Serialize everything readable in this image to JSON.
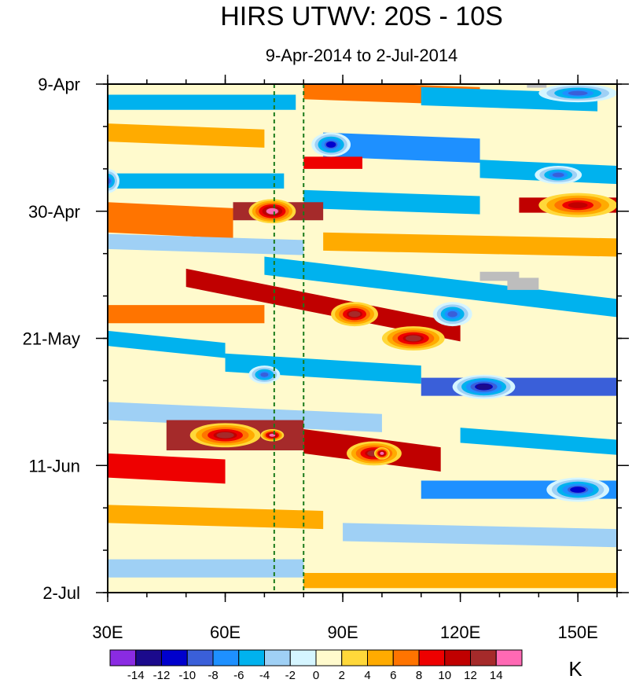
{
  "chart_data": {
    "type": "heatmap",
    "title": "HIRS UTWV: 20S - 10S",
    "subtitle": "9-Apr-2014 to 2-Jul-2014",
    "unit_label": "K",
    "x_axis": {
      "range": [
        30,
        160
      ],
      "ticks": [
        {
          "value": 30,
          "label": "30E"
        },
        {
          "value": 60,
          "label": "60E"
        },
        {
          "value": 90,
          "label": "90E"
        },
        {
          "value": 120,
          "label": "120E"
        },
        {
          "value": 150,
          "label": "150E"
        }
      ],
      "minor_step": 10
    },
    "y_axis": {
      "range_days": [
        0,
        84
      ],
      "ticks": [
        {
          "day": 0,
          "label": "9-Apr"
        },
        {
          "day": 21,
          "label": "30-Apr"
        },
        {
          "day": 42,
          "label": "21-May"
        },
        {
          "day": 63,
          "label": "11-Jun"
        },
        {
          "day": 84,
          "label": "2-Jul"
        }
      ],
      "minor_step_days": 7
    },
    "reference_lines_lon": [
      72.5,
      80
    ],
    "colorbar": {
      "levels": [
        -14,
        -12,
        -10,
        -8,
        -6,
        -4,
        -2,
        0,
        2,
        4,
        6,
        8,
        10,
        12,
        14
      ],
      "labels": [
        "-14",
        "-12",
        "-10",
        "-8",
        "-6",
        "-4",
        "-2",
        "0",
        "2",
        "4",
        "6",
        "8",
        "10",
        "12",
        "14"
      ],
      "colors": [
        "#8a2be2",
        "#1b0a8c",
        "#0000cd",
        "#3a5fd9",
        "#1e90ff",
        "#00b2ee",
        "#9fd0f5",
        "#d5f5ff",
        "#fffacd",
        "#ffd83a",
        "#ffab00",
        "#ff7400",
        "#ee0000",
        "#c00000",
        "#a52a2a",
        "#ff69b4"
      ]
    },
    "bands": [
      {
        "lon_start": 30,
        "lon_end": 160,
        "day_start": 0,
        "day_end": 84,
        "slope": 0,
        "thickness": 0,
        "value": 0
      },
      {
        "lon_start": 80,
        "lon_end": 125,
        "day_start": 1,
        "day_end": 2,
        "slope": 0,
        "thickness": 3,
        "value": 6
      },
      {
        "lon_start": 110,
        "lon_end": 155,
        "day_start": 2,
        "day_end": 3,
        "slope": 0,
        "thickness": 3,
        "value": -6
      },
      {
        "lon_start": 30,
        "lon_end": 78,
        "day_start": 3,
        "day_end": 3,
        "slope": 0,
        "thickness": 2.5,
        "value": -6
      },
      {
        "lon_start": 30,
        "lon_end": 70,
        "day_start": 8,
        "day_end": 9,
        "slope": 0,
        "thickness": 3,
        "value": 4
      },
      {
        "lon_start": 85,
        "lon_end": 125,
        "day_start": 10,
        "day_end": 11,
        "slope": 0,
        "thickness": 4,
        "value": -8
      },
      {
        "lon_start": 80,
        "lon_end": 95,
        "day_start": 13,
        "day_end": 13,
        "slope": 0,
        "thickness": 2,
        "value": 8
      },
      {
        "lon_start": 30,
        "lon_end": 75,
        "day_start": 16,
        "day_end": 16,
        "slope": 0,
        "thickness": 2.5,
        "value": -6
      },
      {
        "lon_start": 125,
        "lon_end": 160,
        "day_start": 14,
        "day_end": 15,
        "slope": 0,
        "thickness": 3,
        "value": -6
      },
      {
        "lon_start": 80,
        "lon_end": 125,
        "day_start": 19,
        "day_end": 20,
        "slope": 0,
        "thickness": 3,
        "value": -6
      },
      {
        "lon_start": 30,
        "lon_end": 62,
        "day_start": 22,
        "day_end": 23,
        "slope": 0,
        "thickness": 5,
        "value": 6
      },
      {
        "lon_start": 62,
        "lon_end": 85,
        "day_start": 21,
        "day_end": 21,
        "slope": 0,
        "thickness": 3,
        "value": 12
      },
      {
        "lon_start": 135,
        "lon_end": 160,
        "day_start": 20,
        "day_end": 20,
        "slope": 0,
        "thickness": 2.5,
        "value": 10
      },
      {
        "lon_start": 30,
        "lon_end": 80,
        "day_start": 26,
        "day_end": 27,
        "slope": 0,
        "thickness": 2.5,
        "value": -4
      },
      {
        "lon_start": 85,
        "lon_end": 160,
        "day_start": 26,
        "day_end": 27,
        "slope": 0,
        "thickness": 3,
        "value": 4
      },
      {
        "lon_start": 50,
        "lon_end": 120,
        "day_start": 32,
        "day_end": 41,
        "slope": 0,
        "thickness": 3,
        "value": 10
      },
      {
        "lon_start": 30,
        "lon_end": 70,
        "day_start": 38,
        "day_end": 38,
        "slope": 0,
        "thickness": 3,
        "value": 6
      },
      {
        "lon_start": 70,
        "lon_end": 160,
        "day_start": 30,
        "day_end": 37,
        "slope": 0,
        "thickness": 3,
        "value": -6
      },
      {
        "lon_start": 30,
        "lon_end": 60,
        "day_start": 42,
        "day_end": 44,
        "slope": 0,
        "thickness": 2.5,
        "value": -6
      },
      {
        "lon_start": 60,
        "lon_end": 110,
        "day_start": 46,
        "day_end": 48,
        "slope": 0,
        "thickness": 3,
        "value": -6
      },
      {
        "lon_start": 110,
        "lon_end": 160,
        "day_start": 50,
        "day_end": 50,
        "slope": 0,
        "thickness": 3,
        "value": -10
      },
      {
        "lon_start": 30,
        "lon_end": 100,
        "day_start": 54,
        "day_end": 56,
        "slope": 0,
        "thickness": 3,
        "value": -4
      },
      {
        "lon_start": 45,
        "lon_end": 80,
        "day_start": 58,
        "day_end": 58,
        "slope": 0,
        "thickness": 5,
        "value": 12
      },
      {
        "lon_start": 80,
        "lon_end": 115,
        "day_start": 59,
        "day_end": 62,
        "slope": 0,
        "thickness": 4,
        "value": 10
      },
      {
        "lon_start": 30,
        "lon_end": 60,
        "day_start": 63,
        "day_end": 64,
        "slope": 0,
        "thickness": 4,
        "value": 8
      },
      {
        "lon_start": 120,
        "lon_end": 160,
        "day_start": 58,
        "day_end": 60,
        "slope": 0,
        "thickness": 2.5,
        "value": -6
      },
      {
        "lon_start": 110,
        "lon_end": 160,
        "day_start": 67,
        "day_end": 67,
        "slope": 0,
        "thickness": 3,
        "value": -8
      },
      {
        "lon_start": 30,
        "lon_end": 85,
        "day_start": 71,
        "day_end": 72,
        "slope": 0,
        "thickness": 3,
        "value": 4
      },
      {
        "lon_start": 90,
        "lon_end": 160,
        "day_start": 74,
        "day_end": 75,
        "slope": 0,
        "thickness": 3,
        "value": -4
      },
      {
        "lon_start": 30,
        "lon_end": 80,
        "day_start": 80,
        "day_end": 80,
        "slope": 0,
        "thickness": 3,
        "value": -4
      },
      {
        "lon_start": 80,
        "lon_end": 160,
        "day_start": 82,
        "day_end": 82,
        "slope": 0,
        "thickness": 2.5,
        "value": 4
      }
    ],
    "blobs": [
      {
        "lon": 72,
        "day": 21,
        "r_lon": 6,
        "r_day": 2,
        "value": 15
      },
      {
        "lon": 60,
        "day": 58,
        "r_lon": 9,
        "r_day": 2,
        "value": 13
      },
      {
        "lon": 72,
        "day": 58,
        "r_lon": 3,
        "r_day": 1,
        "value": 15
      },
      {
        "lon": 98,
        "day": 61,
        "r_lon": 7,
        "r_day": 2,
        "value": 13
      },
      {
        "lon": 100,
        "day": 61,
        "r_lon": 2,
        "r_day": 1,
        "value": 15
      },
      {
        "lon": 93,
        "day": 38,
        "r_lon": 6,
        "r_day": 2,
        "value": 12
      },
      {
        "lon": 108,
        "day": 42,
        "r_lon": 8,
        "r_day": 2,
        "value": 12
      },
      {
        "lon": 87,
        "day": 10,
        "r_lon": 5,
        "r_day": 2,
        "value": -12
      },
      {
        "lon": 150,
        "day": 1.5,
        "r_lon": 10,
        "r_day": 1.5,
        "value": -10
      },
      {
        "lon": 145,
        "day": 15,
        "r_lon": 6,
        "r_day": 1.5,
        "value": -10
      },
      {
        "lon": 126,
        "day": 50,
        "r_lon": 8,
        "r_day": 2,
        "value": -14
      },
      {
        "lon": 150,
        "day": 67,
        "r_lon": 8,
        "r_day": 2,
        "value": -12
      },
      {
        "lon": 70,
        "day": 48,
        "r_lon": 4,
        "r_day": 1.5,
        "value": -10
      },
      {
        "lon": 118,
        "day": 38,
        "r_lon": 5,
        "r_day": 2,
        "value": -10
      },
      {
        "lon": 150,
        "day": 20,
        "r_lon": 10,
        "r_day": 2,
        "value": 10
      },
      {
        "lon": 30,
        "day": 16,
        "r_lon": 3,
        "r_day": 2,
        "value": -10
      }
    ],
    "missing_data": [
      {
        "lon_start": 125,
        "lon_end": 135,
        "day_start": 31,
        "day_end": 32.5
      },
      {
        "lon_start": 132,
        "lon_end": 140,
        "day_start": 32,
        "day_end": 34
      },
      {
        "lon_start": 137,
        "lon_end": 142,
        "day_start": 0,
        "day_end": 0.6
      }
    ]
  }
}
